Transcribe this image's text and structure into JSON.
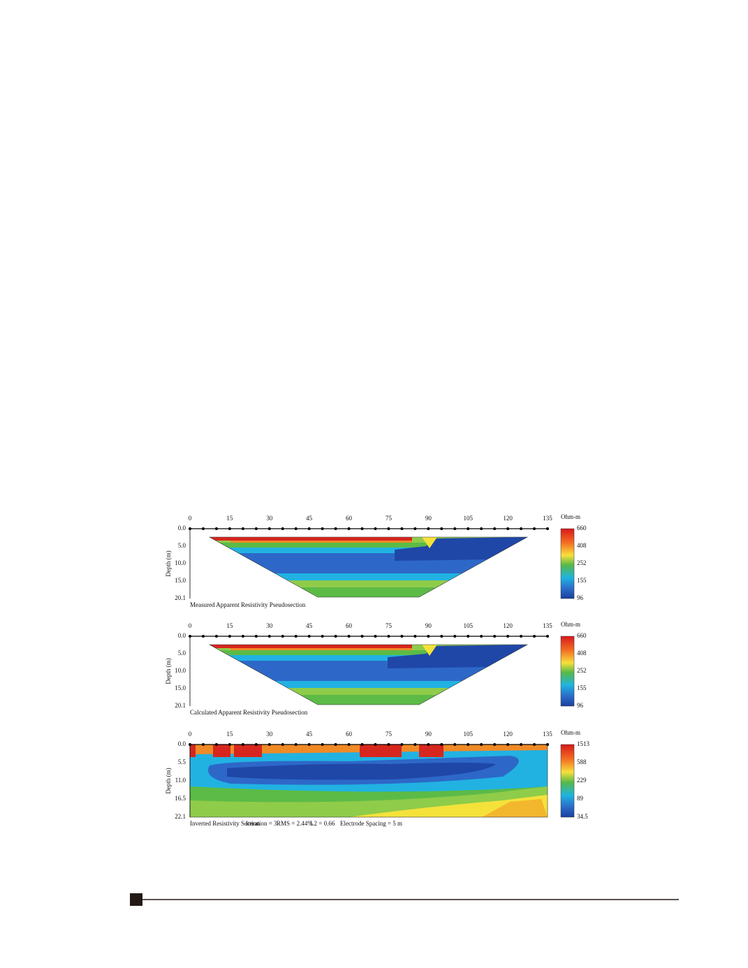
{
  "figure": {
    "panels": [
      {
        "kind": "pseudo",
        "x_ticks": [
          "0",
          "15",
          "30",
          "45",
          "60",
          "75",
          "90",
          "105",
          "120",
          "135"
        ],
        "y_label": "Depth (m)",
        "depth_ticks": [
          "0.0",
          "5.0",
          "10.0",
          "15.0",
          "20.1"
        ],
        "unit": "Ohm-m",
        "scale": [
          "660",
          "408",
          "252",
          "155",
          "96"
        ],
        "caption": [
          "Measured Apparent Resistivity Pseudosection"
        ]
      },
      {
        "kind": "pseudo",
        "x_ticks": [
          "0",
          "15",
          "30",
          "45",
          "60",
          "75",
          "90",
          "105",
          "120",
          "135"
        ],
        "y_label": "Depth (m)",
        "depth_ticks": [
          "0.0",
          "5.0",
          "10.0",
          "15.0",
          "20.1"
        ],
        "unit": "Ohm-m",
        "scale": [
          "660",
          "408",
          "252",
          "155",
          "96"
        ],
        "caption": [
          "Calculated Apparent Resistivity Pseudosection"
        ]
      },
      {
        "kind": "inverted",
        "x_ticks": [
          "0",
          "15",
          "30",
          "45",
          "60",
          "75",
          "90",
          "105",
          "120",
          "135"
        ],
        "y_label": "Depth (m)",
        "depth_ticks": [
          "0.0",
          "5.5",
          "11.0",
          "16.5",
          "22.1"
        ],
        "unit": "Ohm-m",
        "scale": [
          "1513",
          "588",
          "229",
          "89",
          "34.5"
        ],
        "caption": [
          "Inverted Resistivity Section",
          "Iteration = 3",
          "RMS = 2.44%",
          "L2 = 0.66",
          "Electrode Spacing = 5 m"
        ]
      }
    ]
  }
}
